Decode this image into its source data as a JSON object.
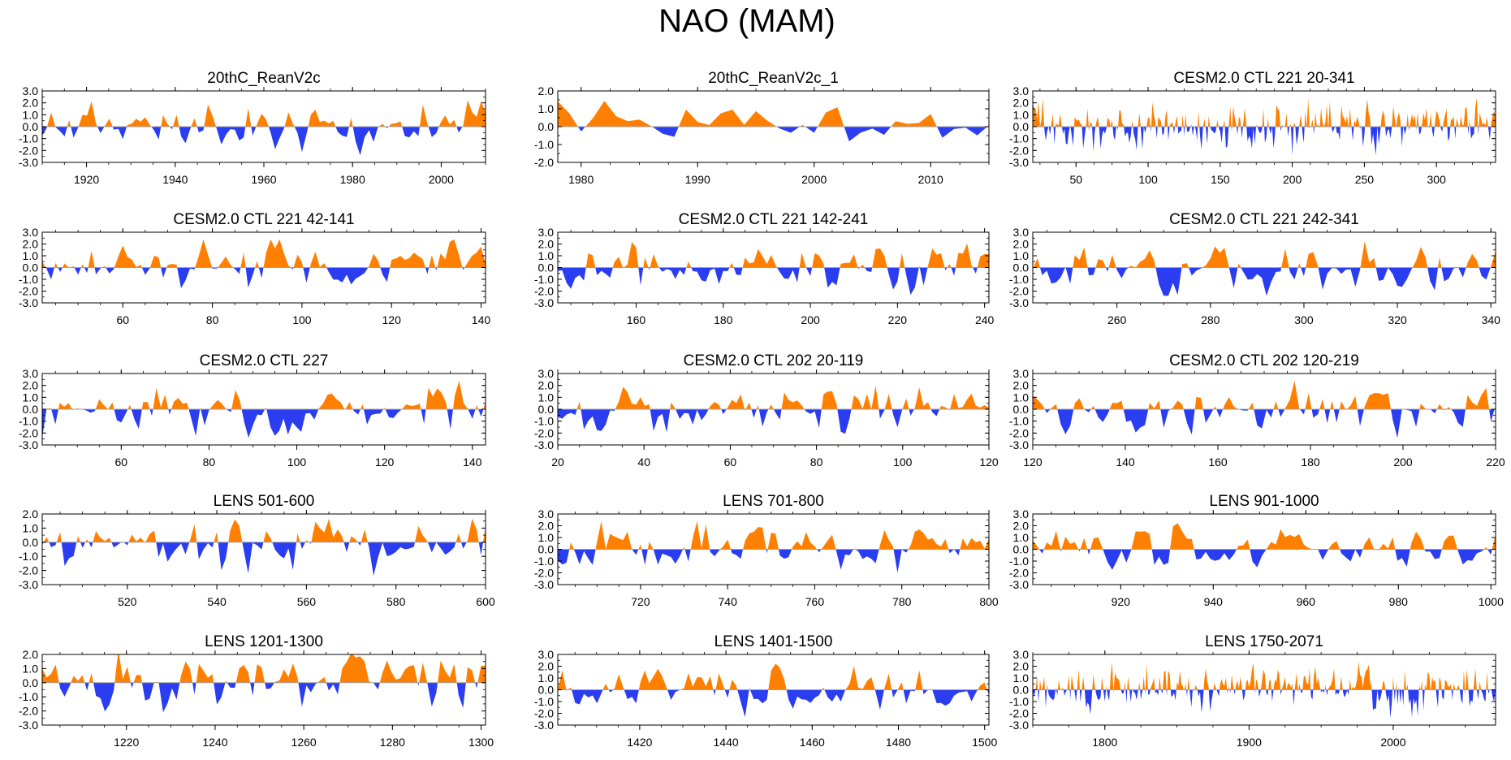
{
  "figure": {
    "title": "NAO (MAM)",
    "positive_color": "#ff8000",
    "negative_color": "#2b3df0",
    "zero_line_color": "#a0a0a0",
    "axis_color": "#000000"
  },
  "chart_data": [
    {
      "type": "area",
      "title": "20thC_ReanV2c",
      "xlim": [
        1910,
        2010
      ],
      "ylim": [
        -3,
        3
      ],
      "yticks": [
        "3.0",
        "2.0",
        "1.0",
        "0.0",
        "-1.0",
        "-2.0",
        "-3.0"
      ],
      "xticks": [
        1920,
        1940,
        1960,
        1980,
        2000
      ],
      "n": 100,
      "seed": 11,
      "amp": 0.95
    },
    {
      "type": "area",
      "title": "20thC_ReanV2c_1",
      "xlim": [
        1978,
        2015
      ],
      "ylim": [
        -2,
        2
      ],
      "yticks": [
        "2.0",
        "1.0",
        "0.0",
        "-1.0",
        "-2.0"
      ],
      "xticks": [
        1980,
        1990,
        2000,
        2010
      ],
      "n": 38,
      "seed": 23,
      "amp": 0.8
    },
    {
      "type": "area",
      "title": "CESM2.0 CTL 221 20-341",
      "xlim": [
        20,
        341
      ],
      "ylim": [
        -3,
        3
      ],
      "yticks": [
        "3.0",
        "2.0",
        "1.0",
        "0.0",
        "-1.0",
        "-2.0",
        "-3.0"
      ],
      "xticks": [
        50,
        100,
        150,
        200,
        250,
        300
      ],
      "n": 322,
      "seed": 37,
      "amp": 0.95,
      "spiky": true
    },
    {
      "type": "area",
      "title": "CESM2.0 CTL 221 42-141",
      "xlim": [
        42,
        141
      ],
      "ylim": [
        -3,
        3
      ],
      "yticks": [
        "3.0",
        "2.0",
        "1.0",
        "0.0",
        "-1.0",
        "-2.0",
        "-3.0"
      ],
      "xticks": [
        60,
        80,
        100,
        120,
        140
      ],
      "n": 100,
      "seed": 41,
      "amp": 0.95
    },
    {
      "type": "area",
      "title": "CESM2.0 CTL 221 142-241",
      "xlim": [
        142,
        241
      ],
      "ylim": [
        -3,
        3
      ],
      "yticks": [
        "3.0",
        "2.0",
        "1.0",
        "0.0",
        "-1.0",
        "-2.0",
        "-3.0"
      ],
      "xticks": [
        160,
        180,
        200,
        220,
        240
      ],
      "n": 100,
      "seed": 53,
      "amp": 0.95
    },
    {
      "type": "area",
      "title": "CESM2.0 CTL 221 242-341",
      "xlim": [
        242,
        341
      ],
      "ylim": [
        -3,
        3
      ],
      "yticks": [
        "3.0",
        "2.0",
        "1.0",
        "0.0",
        "-1.0",
        "-2.0",
        "-3.0"
      ],
      "xticks": [
        260,
        280,
        300,
        320,
        340
      ],
      "n": 100,
      "seed": 67,
      "amp": 0.95
    },
    {
      "type": "area",
      "title": "CESM2.0 CTL 227",
      "xlim": [
        42,
        143
      ],
      "ylim": [
        -3,
        3
      ],
      "yticks": [
        "3.0",
        "2.0",
        "1.0",
        "0.0",
        "-1.0",
        "-2.0",
        "-3.0"
      ],
      "xticks": [
        60,
        80,
        100,
        120,
        140
      ],
      "n": 102,
      "seed": 71,
      "amp": 0.95
    },
    {
      "type": "area",
      "title": "CESM2.0 CTL 202 20-119",
      "xlim": [
        20,
        120
      ],
      "ylim": [
        -3,
        3
      ],
      "yticks": [
        "3.0",
        "2.0",
        "1.0",
        "0.0",
        "-1.0",
        "-2.0",
        "-3.0"
      ],
      "xticks": [
        20,
        40,
        60,
        80,
        100,
        120
      ],
      "n": 100,
      "seed": 83,
      "amp": 0.95
    },
    {
      "type": "area",
      "title": "CESM2.0 CTL 202 120-219",
      "xlim": [
        120,
        220
      ],
      "ylim": [
        -3,
        3
      ],
      "yticks": [
        "3.0",
        "2.0",
        "1.0",
        "0.0",
        "-1.0",
        "-2.0",
        "-3.0"
      ],
      "xticks": [
        120,
        140,
        160,
        180,
        200,
        220
      ],
      "n": 100,
      "seed": 97,
      "amp": 0.95
    },
    {
      "type": "area",
      "title": "LENS 501-600",
      "xlim": [
        501,
        600
      ],
      "ylim": [
        -3,
        2
      ],
      "yticks": [
        "2.0",
        "1.0",
        "0.0",
        "-1.0",
        "-2.0",
        "-3.0"
      ],
      "xticks": [
        520,
        540,
        560,
        580,
        600
      ],
      "n": 100,
      "seed": 101,
      "amp": 0.9
    },
    {
      "type": "area",
      "title": "LENS 701-800",
      "xlim": [
        701,
        800
      ],
      "ylim": [
        -3,
        3
      ],
      "yticks": [
        "3.0",
        "2.0",
        "1.0",
        "0.0",
        "-1.0",
        "-2.0",
        "-3.0"
      ],
      "xticks": [
        720,
        740,
        760,
        780,
        800
      ],
      "n": 100,
      "seed": 113,
      "amp": 0.9
    },
    {
      "type": "area",
      "title": "LENS 901-1000",
      "xlim": [
        901,
        1001
      ],
      "ylim": [
        -3,
        3
      ],
      "yticks": [
        "3.0",
        "2.0",
        "1.0",
        "0.0",
        "-1.0",
        "-2.0",
        "-3.0"
      ],
      "xticks": [
        920,
        940,
        960,
        980,
        1000
      ],
      "n": 100,
      "seed": 127,
      "amp": 0.9
    },
    {
      "type": "area",
      "title": "LENS 1201-1300",
      "xlim": [
        1201,
        1301
      ],
      "ylim": [
        -3,
        2
      ],
      "yticks": [
        "2.0",
        "1.0",
        "0.0",
        "-1.0",
        "-2.0",
        "-3.0"
      ],
      "xticks": [
        1220,
        1240,
        1260,
        1280,
        1300
      ],
      "n": 100,
      "seed": 131,
      "amp": 0.9
    },
    {
      "type": "area",
      "title": "LENS 1401-1500",
      "xlim": [
        1401,
        1501
      ],
      "ylim": [
        -3,
        3
      ],
      "yticks": [
        "3.0",
        "2.0",
        "1.0",
        "0.0",
        "-1.0",
        "-2.0",
        "-3.0"
      ],
      "xticks": [
        1420,
        1440,
        1460,
        1480,
        1500
      ],
      "n": 100,
      "seed": 139,
      "amp": 0.9
    },
    {
      "type": "area",
      "title": "LENS 1750-2071",
      "xlim": [
        1750,
        2071
      ],
      "ylim": [
        -3,
        3
      ],
      "yticks": [
        "3.0",
        "2.0",
        "1.0",
        "0.0",
        "-1.0",
        "-2.0",
        "-3.0"
      ],
      "xticks": [
        1800,
        1900,
        2000
      ],
      "n": 322,
      "seed": 149,
      "amp": 0.9,
      "spiky": true
    }
  ]
}
